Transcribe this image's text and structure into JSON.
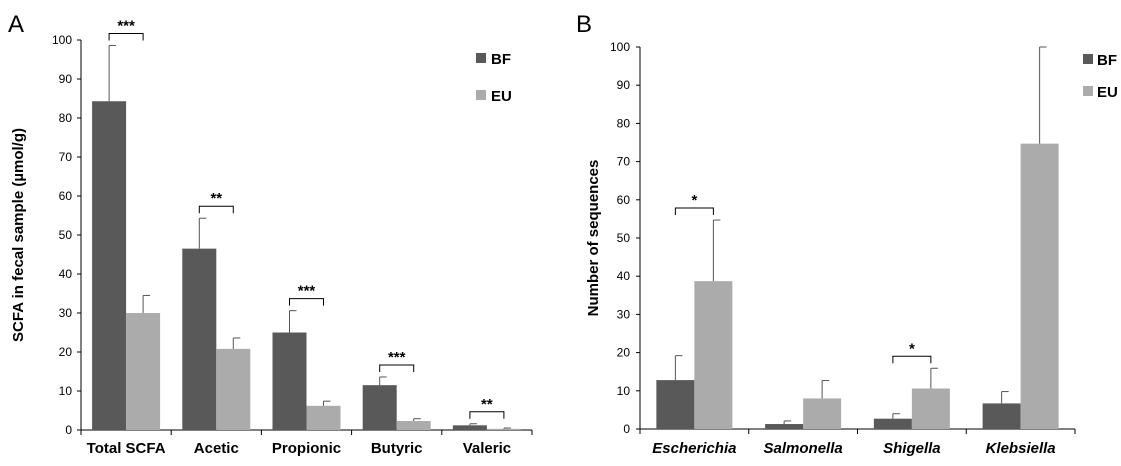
{
  "colors": {
    "BF": "#595959",
    "EU": "#ababab"
  },
  "chart_data": [
    {
      "panel": "A",
      "type": "bar",
      "ylabel": "SCFA in fecal sample (µmol/g)",
      "ylim": [
        0,
        100
      ],
      "yticks": [
        0,
        10,
        20,
        30,
        40,
        50,
        60,
        70,
        80,
        90,
        100
      ],
      "categories": [
        "Total SCFA",
        "Acetic",
        "Propionic",
        "Butyric",
        "Valeric"
      ],
      "series": [
        {
          "name": "BF",
          "values": [
            84.3,
            46.5,
            25.0,
            11.5,
            1.2
          ],
          "errors": [
            14.3,
            7.8,
            5.6,
            2.1,
            0.4
          ]
        },
        {
          "name": "EU",
          "values": [
            30.0,
            20.8,
            6.2,
            2.3,
            0.3
          ],
          "errors": [
            4.5,
            2.8,
            1.2,
            0.6,
            0.2
          ]
        }
      ],
      "significance": [
        "***",
        "**",
        "***",
        "***",
        "**"
      ],
      "legend_position": "top-right",
      "grid": false
    },
    {
      "panel": "B",
      "type": "bar",
      "ylabel": "Number of sequences",
      "ylim": [
        0,
        100
      ],
      "yticks": [
        0,
        10,
        20,
        30,
        40,
        50,
        60,
        70,
        80,
        90,
        100
      ],
      "categories": [
        "Escherichia",
        "Salmonella",
        "Shigella",
        "Klebsiella"
      ],
      "italic_categories": true,
      "series": [
        {
          "name": "BF",
          "values": [
            12.8,
            1.3,
            2.7,
            6.7
          ],
          "errors": [
            6.4,
            0.8,
            1.3,
            3.1
          ]
        },
        {
          "name": "EU",
          "values": [
            38.7,
            8.0,
            10.6,
            74.7
          ],
          "errors": [
            16.0,
            4.7,
            5.3,
            25.3
          ]
        }
      ],
      "significance": [
        "*",
        "",
        "*",
        ""
      ],
      "legend_position": "top-right",
      "grid": false
    }
  ]
}
